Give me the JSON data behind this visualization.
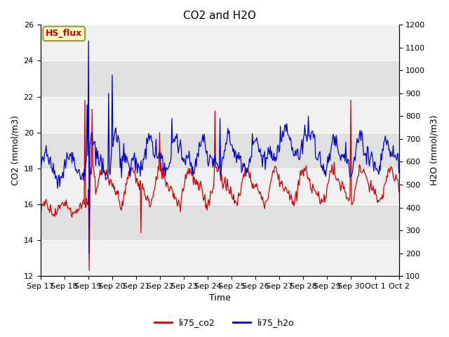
{
  "title": "CO2 and H2O",
  "xlabel": "Time",
  "ylabel_left": "CO2 (mmol/m3)",
  "ylabel_right": "H2O (mmol/m3)",
  "ylim_left": [
    12,
    26
  ],
  "ylim_right": [
    100,
    1200
  ],
  "yticks_left": [
    12,
    14,
    16,
    18,
    20,
    22,
    24,
    26
  ],
  "yticks_right": [
    100,
    200,
    300,
    400,
    500,
    600,
    700,
    800,
    900,
    1000,
    1100,
    1200
  ],
  "xtick_labels": [
    "Sep 17",
    "Sep 18",
    "Sep 19",
    "Sep 20",
    "Sep 21",
    "Sep 22",
    "Sep 23",
    "Sep 24",
    "Sep 25",
    "Sep 26",
    "Sep 27",
    "Sep 28",
    "Sep 29",
    "Sep 30",
    "Oct 1",
    "Oct 2"
  ],
  "color_co2": "#cc0000",
  "color_h2o": "#0000cc",
  "legend_label_co2": "li75_co2",
  "legend_label_h2o": "li75_h2o",
  "box_label": "HS_flux",
  "box_facecolor": "#ffffcc",
  "box_edgecolor": "#999933",
  "box_textcolor": "#cc0000",
  "fig_facecolor": "#ffffff",
  "plot_facecolor": "#ffffff",
  "band_color_dark": "#e0e0e0",
  "band_color_light": "#f0f0f0",
  "n_points": 500
}
